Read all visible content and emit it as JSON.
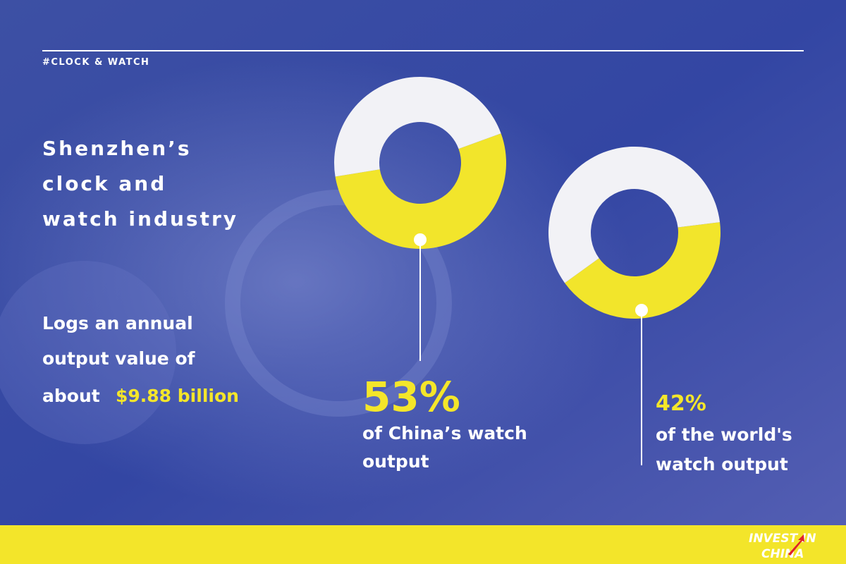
{
  "header": {
    "tag": "#CLOCK & WATCH"
  },
  "headline": [
    "Shenzhen’s",
    "clock and",
    "watch industry"
  ],
  "output": {
    "lines": [
      "Logs an annual",
      "output value of"
    ],
    "prefix": "about",
    "highlight": "$9.88 billion"
  },
  "chart_data": [
    {
      "type": "donut",
      "values": [
        53,
        47
      ],
      "value_labels": [
        "53%",
        null
      ],
      "colors": [
        "#f2e52b",
        "#f2f2f6"
      ],
      "caption": [
        "of China’s watch",
        "output"
      ]
    },
    {
      "type": "donut",
      "values": [
        42,
        58
      ],
      "value_labels": [
        "42%",
        null
      ],
      "colors": [
        "#f2e52b",
        "#f2f2f6"
      ],
      "caption": [
        "of the world's",
        "watch output"
      ]
    }
  ],
  "logo": {
    "line1": "INVEST IN",
    "line2": "CHINA"
  }
}
